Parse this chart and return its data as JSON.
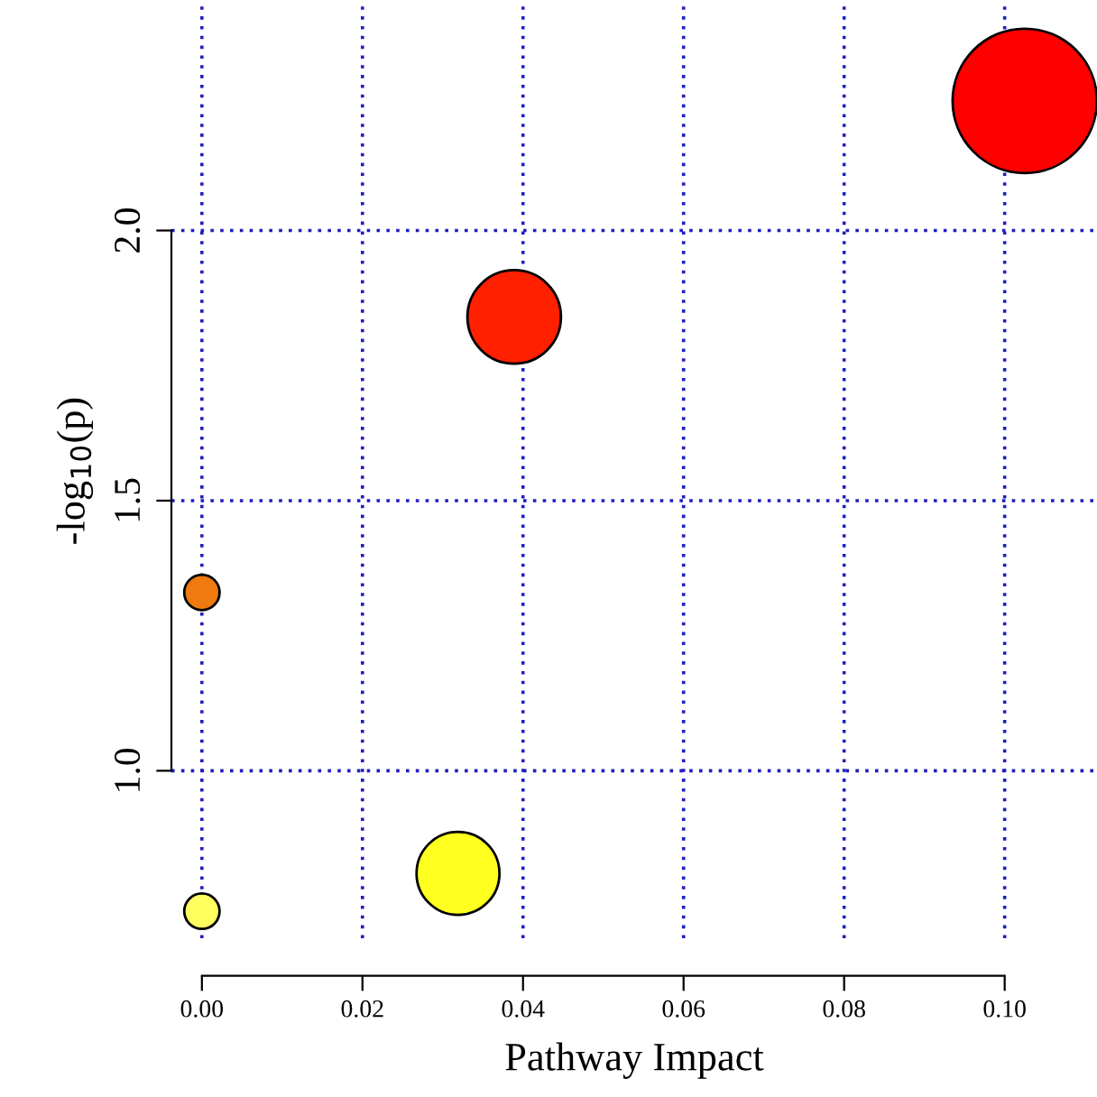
{
  "chart_data": {
    "type": "bubble",
    "xlabel": "Pathway Impact",
    "ylabel": "-log$_{10}$(p)",
    "x": [
      0.1025,
      0.0389,
      0.0,
      0.0319,
      0.0
    ],
    "values": [
      2.24,
      1.84,
      1.33,
      0.81,
      0.74
    ],
    "sizes": [
      1,
      0.42,
      0.06,
      0.33,
      0.06
    ],
    "colors": [
      "#ff0000",
      "#ff2000",
      "#ee7a10",
      "#ffff20",
      "#ffff60"
    ],
    "xlim": [
      -0.0038,
      0.1115
    ],
    "ylim": [
      0.69,
      2.42
    ],
    "xticks": [
      {
        "value": 0.0,
        "label": "0.00"
      },
      {
        "value": 0.02,
        "label": "0.02"
      },
      {
        "value": 0.04,
        "label": "0.04"
      },
      {
        "value": 0.06,
        "label": "0.06"
      },
      {
        "value": 0.08,
        "label": "0.08"
      },
      {
        "value": 0.1,
        "label": "0.10"
      }
    ],
    "yticks": [
      {
        "value": 1.0,
        "label": "1.0"
      },
      {
        "value": 1.5,
        "label": "1.5"
      },
      {
        "value": 2.0,
        "label": "2.0"
      }
    ],
    "grid": true,
    "legend": false
  }
}
